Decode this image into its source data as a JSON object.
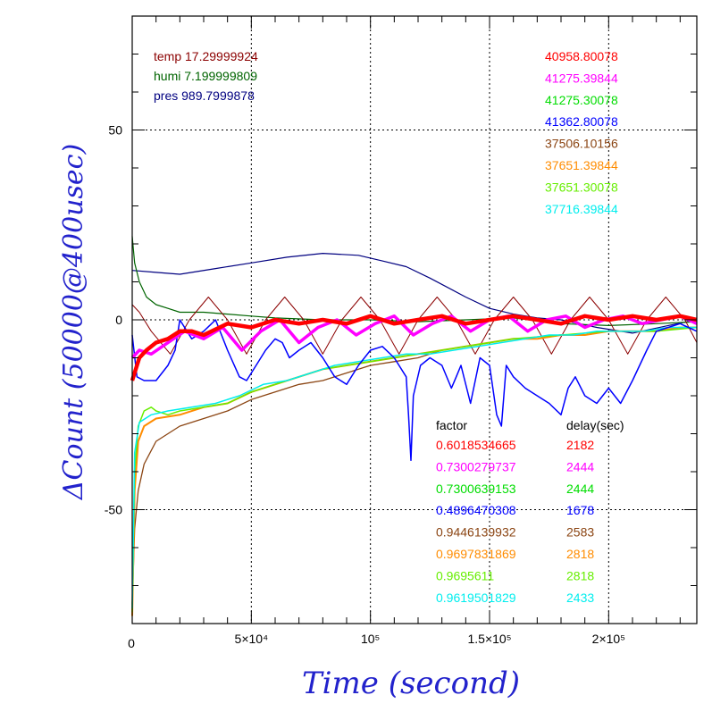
{
  "chart_data": {
    "type": "line",
    "title": "",
    "xlabel": "Time (second)",
    "ylabel": "ΔCount (50000@400usec)",
    "xlim": [
      0,
      237000
    ],
    "ylim": [
      -80,
      80
    ],
    "x_tick_labels": [
      "0",
      "5×10⁴",
      "10⁵",
      "1.5×10⁵",
      "2×10⁵"
    ],
    "x_tick_values": [
      0,
      50000,
      100000,
      150000,
      200000
    ],
    "y_tick_labels": [
      "-50",
      "0",
      "50"
    ],
    "y_tick_values": [
      -50,
      0,
      50
    ],
    "grid": true,
    "grid_style": "dotted",
    "axis_color": "#000000",
    "label_color": "#2222cc",
    "env_legend": [
      {
        "name": "temp",
        "value": "17.29999924",
        "color": "#8b0000"
      },
      {
        "name": "humi",
        "value": "7.199999809",
        "color": "#006400"
      },
      {
        "name": "pres",
        "value": "989.7999878",
        "color": "#000080"
      }
    ],
    "counts_legend": [
      {
        "value": "40958.80078",
        "color": "#ff0000"
      },
      {
        "value": "41275.39844",
        "color": "#ff00ff"
      },
      {
        "value": "41275.30078",
        "color": "#00dd00"
      },
      {
        "value": "41362.80078",
        "color": "#0000ff"
      },
      {
        "value": "37506.10156",
        "color": "#8b4513"
      },
      {
        "value": "37651.39844",
        "color": "#ff8c00"
      },
      {
        "value": "37651.30078",
        "color": "#66ee00"
      },
      {
        "value": "37716.39844",
        "color": "#00eeee"
      }
    ],
    "factor_header": "factor",
    "delay_header": "delay(sec)",
    "factor_table": [
      {
        "factor": "0.6018534665",
        "delay": "2182",
        "color": "#ff0000"
      },
      {
        "factor": "0.7300279737",
        "delay": "2444",
        "color": "#ff00ff"
      },
      {
        "factor": "0.7300639153",
        "delay": "2444",
        "color": "#00dd00"
      },
      {
        "factor": "0.4896470308",
        "delay": "1678",
        "color": "#0000ff"
      },
      {
        "factor": "0.9446139932",
        "delay": "2583",
        "color": "#8b4513"
      },
      {
        "factor": "0.9697831869",
        "delay": "2818",
        "color": "#ff8c00"
      },
      {
        "factor": "0.9695611",
        "delay": "2818",
        "color": "#66ee00"
      },
      {
        "factor": "0.9619501829",
        "delay": "2433",
        "color": "#00eeee"
      }
    ],
    "series": [
      {
        "color": "#000080",
        "width": 1.2,
        "x": [
          0,
          10000,
          20000,
          35000,
          50000,
          65000,
          80000,
          95000,
          105000,
          115000,
          125000,
          140000,
          150000,
          160000,
          170000,
          180000,
          195000,
          210000,
          225000,
          237000
        ],
        "y": [
          13,
          12.5,
          12,
          13.5,
          15,
          16.5,
          17.5,
          17,
          15.5,
          14,
          11,
          6,
          3,
          1.5,
          0.5,
          0,
          -2,
          -3.5,
          -1.5,
          0
        ]
      },
      {
        "color": "#006400",
        "width": 1.2,
        "x": [
          0,
          1000,
          3000,
          6000,
          10000,
          15000,
          20000,
          30000,
          40000,
          50000,
          60000,
          80000,
          100000,
          120000,
          140000,
          160000,
          180000,
          200000,
          220000,
          237000
        ],
        "y": [
          22,
          15,
          10,
          6,
          4,
          3,
          2,
          2,
          1.5,
          1,
          0.5,
          0,
          0,
          -0.5,
          0,
          0.5,
          -1,
          -1.5,
          -1,
          -0.5
        ]
      },
      {
        "color": "#8b0000",
        "width": 1.0,
        "x": [
          0,
          3000,
          8000,
          16000,
          24000,
          32000,
          40000,
          48000,
          56000,
          64000,
          72000,
          80000,
          88000,
          96000,
          104000,
          112000,
          120000,
          128000,
          136000,
          144000,
          152000,
          160000,
          168000,
          176000,
          184000,
          192000,
          200000,
          208000,
          216000,
          224000,
          232000,
          237000
        ],
        "y": [
          4,
          2,
          -3,
          -9,
          0,
          6,
          0,
          -9,
          0,
          6,
          0,
          -9,
          0,
          6,
          0,
          -9,
          0,
          6,
          0,
          -9,
          0,
          6,
          0,
          -9,
          0,
          6,
          0,
          -9,
          0,
          6,
          0,
          -6
        ]
      },
      {
        "color": "#8b4513",
        "width": 1.3,
        "x": [
          0,
          1000,
          2500,
          5000,
          10000,
          20000,
          30000,
          40000,
          50000,
          60000,
          70000,
          80000,
          90000,
          100000,
          110000,
          120000,
          130000,
          140000,
          150000,
          160000,
          170000,
          180000,
          190000,
          200000,
          210000,
          220000,
          230000,
          237000
        ],
        "y": [
          -75,
          -55,
          -45,
          -38,
          -32,
          -28,
          -26,
          -24,
          -21,
          -19,
          -17,
          -16,
          -14,
          -12,
          -11,
          -10,
          -8,
          -7,
          -6,
          -5,
          -5,
          -4,
          -4,
          -3,
          -3,
          -3,
          -2,
          -2
        ]
      },
      {
        "color": "#ff8c00",
        "width": 2.0,
        "x": [
          0,
          1000,
          2500,
          5000,
          10000,
          20000,
          30000,
          40000,
          50000,
          60000,
          70000,
          80000,
          90000,
          100000,
          110000,
          120000,
          130000,
          140000,
          150000,
          160000,
          170000,
          180000,
          190000,
          200000,
          210000,
          220000,
          230000,
          237000
        ],
        "y": [
          -78,
          -45,
          -32,
          -28,
          -26,
          -25,
          -23,
          -22,
          -19,
          -17,
          -15,
          -13,
          -12,
          -11,
          -10,
          -9,
          -8,
          -7,
          -6,
          -5,
          -5,
          -4,
          -4,
          -3,
          -3,
          -3,
          -2,
          -2
        ]
      },
      {
        "color": "#66ee00",
        "width": 1.5,
        "x": [
          0,
          1000,
          2500,
          5000,
          8000,
          10000,
          15000,
          20000,
          30000,
          40000,
          50000,
          60000,
          70000,
          80000,
          90000,
          100000,
          120000,
          140000,
          160000,
          180000,
          200000,
          220000,
          237000
        ],
        "y": [
          -77,
          -40,
          -28,
          -24,
          -23,
          -24,
          -25,
          -24,
          -23,
          -22,
          -19,
          -17,
          -15,
          -13,
          -12,
          -11,
          -9,
          -7,
          -5,
          -4,
          -3,
          -3,
          -2
        ]
      },
      {
        "color": "#00eeee",
        "width": 1.5,
        "x": [
          0,
          1000,
          3000,
          8000,
          15000,
          25000,
          35000,
          45000,
          55000,
          65000,
          75000,
          85000,
          95000,
          105000,
          115000,
          125000,
          135000,
          145000,
          155000,
          165000,
          175000,
          185000,
          195000,
          205000,
          215000,
          225000,
          237000
        ],
        "y": [
          -76,
          -35,
          -27,
          -25,
          -24,
          -23,
          -22,
          -20,
          -17,
          -16,
          -14,
          -12,
          -11,
          -10,
          -9,
          -9,
          -8,
          -7,
          -6,
          -5,
          -4,
          -4,
          -3,
          -3,
          -3,
          -2,
          -2
        ]
      },
      {
        "color": "#0000ff",
        "width": 1.5,
        "x": [
          0,
          2000,
          5000,
          10000,
          15000,
          18000,
          20000,
          25000,
          30000,
          35000,
          40000,
          45000,
          48000,
          52000,
          56000,
          60000,
          63000,
          66000,
          70000,
          75000,
          80000,
          85000,
          90000,
          95000,
          100000,
          105000,
          110000,
          115000,
          116000,
          117000,
          118000,
          121000,
          125000,
          130000,
          134000,
          136000,
          138000,
          142000,
          146000,
          150000,
          153000,
          155000,
          157000,
          160000,
          165000,
          170000,
          175000,
          180000,
          183000,
          186000,
          190000,
          195000,
          200000,
          205000,
          210000,
          213000,
          216000,
          220000,
          225000,
          230000,
          237000
        ],
        "y": [
          -4,
          -15,
          -16,
          -16,
          -12,
          -8,
          0,
          -5,
          -3,
          0,
          -8,
          -15,
          -16,
          -12,
          -8,
          -5,
          -6,
          -10,
          -8,
          -6,
          -10,
          -15,
          -17,
          -12,
          -8,
          -7,
          -10,
          -15,
          -25,
          -37,
          -20,
          -12,
          -10,
          -12,
          -18,
          -15,
          -12,
          -22,
          -10,
          -12,
          -25,
          -28,
          -12,
          -15,
          -18,
          -20,
          -22,
          -25,
          -18,
          -15,
          -20,
          -22,
          -18,
          -22,
          -16,
          -12,
          -8,
          -3,
          -2,
          -1,
          -3
        ]
      },
      {
        "color": "#ff00ff",
        "width": 3.5,
        "x": [
          0,
          3000,
          8000,
          15000,
          22000,
          30000,
          38000,
          46000,
          54000,
          62000,
          70000,
          78000,
          86000,
          94000,
          102000,
          110000,
          118000,
          126000,
          134000,
          142000,
          150000,
          158000,
          166000,
          174000,
          182000,
          190000,
          198000,
          206000,
          214000,
          222000,
          230000,
          237000
        ],
        "y": [
          -10,
          -8,
          -9,
          -6,
          -3,
          -5,
          -2,
          -8,
          -3,
          0,
          -6,
          -2,
          0,
          -4,
          -1,
          1,
          -4,
          -1,
          1,
          -3,
          0,
          1,
          -3,
          0,
          1,
          -2,
          0,
          1,
          -1,
          0,
          1,
          -1
        ]
      },
      {
        "color": "#ff0000",
        "width": 4.5,
        "x": [
          0,
          3000,
          6000,
          10000,
          15000,
          20000,
          25000,
          30000,
          40000,
          50000,
          60000,
          70000,
          80000,
          90000,
          100000,
          110000,
          120000,
          130000,
          140000,
          150000,
          160000,
          170000,
          180000,
          190000,
          200000,
          210000,
          220000,
          230000,
          237000
        ],
        "y": [
          -16,
          -10,
          -8,
          -6,
          -5,
          -3,
          -3,
          -4,
          -1,
          -2,
          0,
          -1,
          0,
          -1,
          1,
          -1,
          0,
          1,
          -1,
          0,
          1,
          0,
          -1,
          1,
          0,
          1,
          0,
          1,
          0
        ]
      }
    ]
  }
}
